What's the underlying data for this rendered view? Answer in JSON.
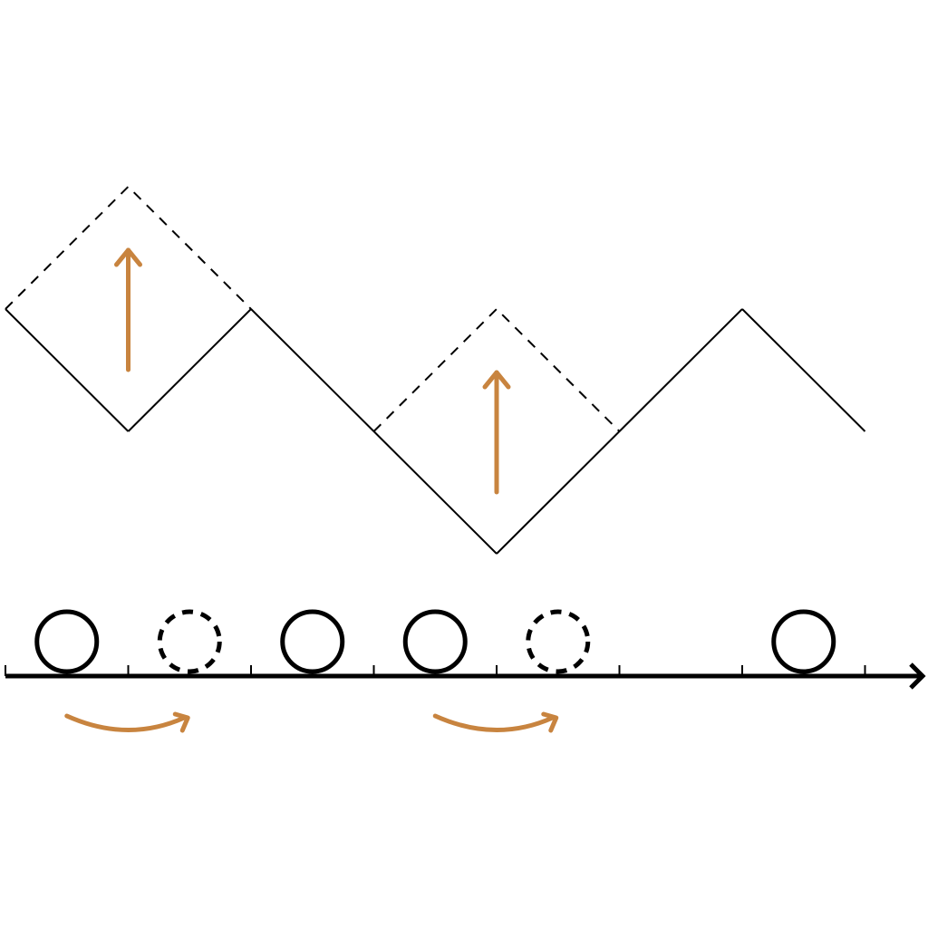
{
  "colors": {
    "stroke": "#000000",
    "accent": "#c8843f",
    "background": "#ffffff"
  },
  "lattice": {
    "site_count": 7,
    "occupancy": [
      "occupied",
      "empty-dashed",
      "occupied",
      "occupied",
      "empty-dashed",
      "empty",
      "occupied"
    ],
    "hops": [
      {
        "from_site": 0,
        "to_site": 1
      },
      {
        "from_site": 3,
        "to_site": 4
      }
    ]
  },
  "height_profile": {
    "heights": [
      1,
      0,
      1,
      0,
      -1,
      0,
      1,
      0
    ],
    "flips": [
      {
        "at_node": 1,
        "old_height": 0,
        "new_height": 2
      },
      {
        "at_node": 4,
        "old_height": -1,
        "new_height": 1
      }
    ]
  }
}
